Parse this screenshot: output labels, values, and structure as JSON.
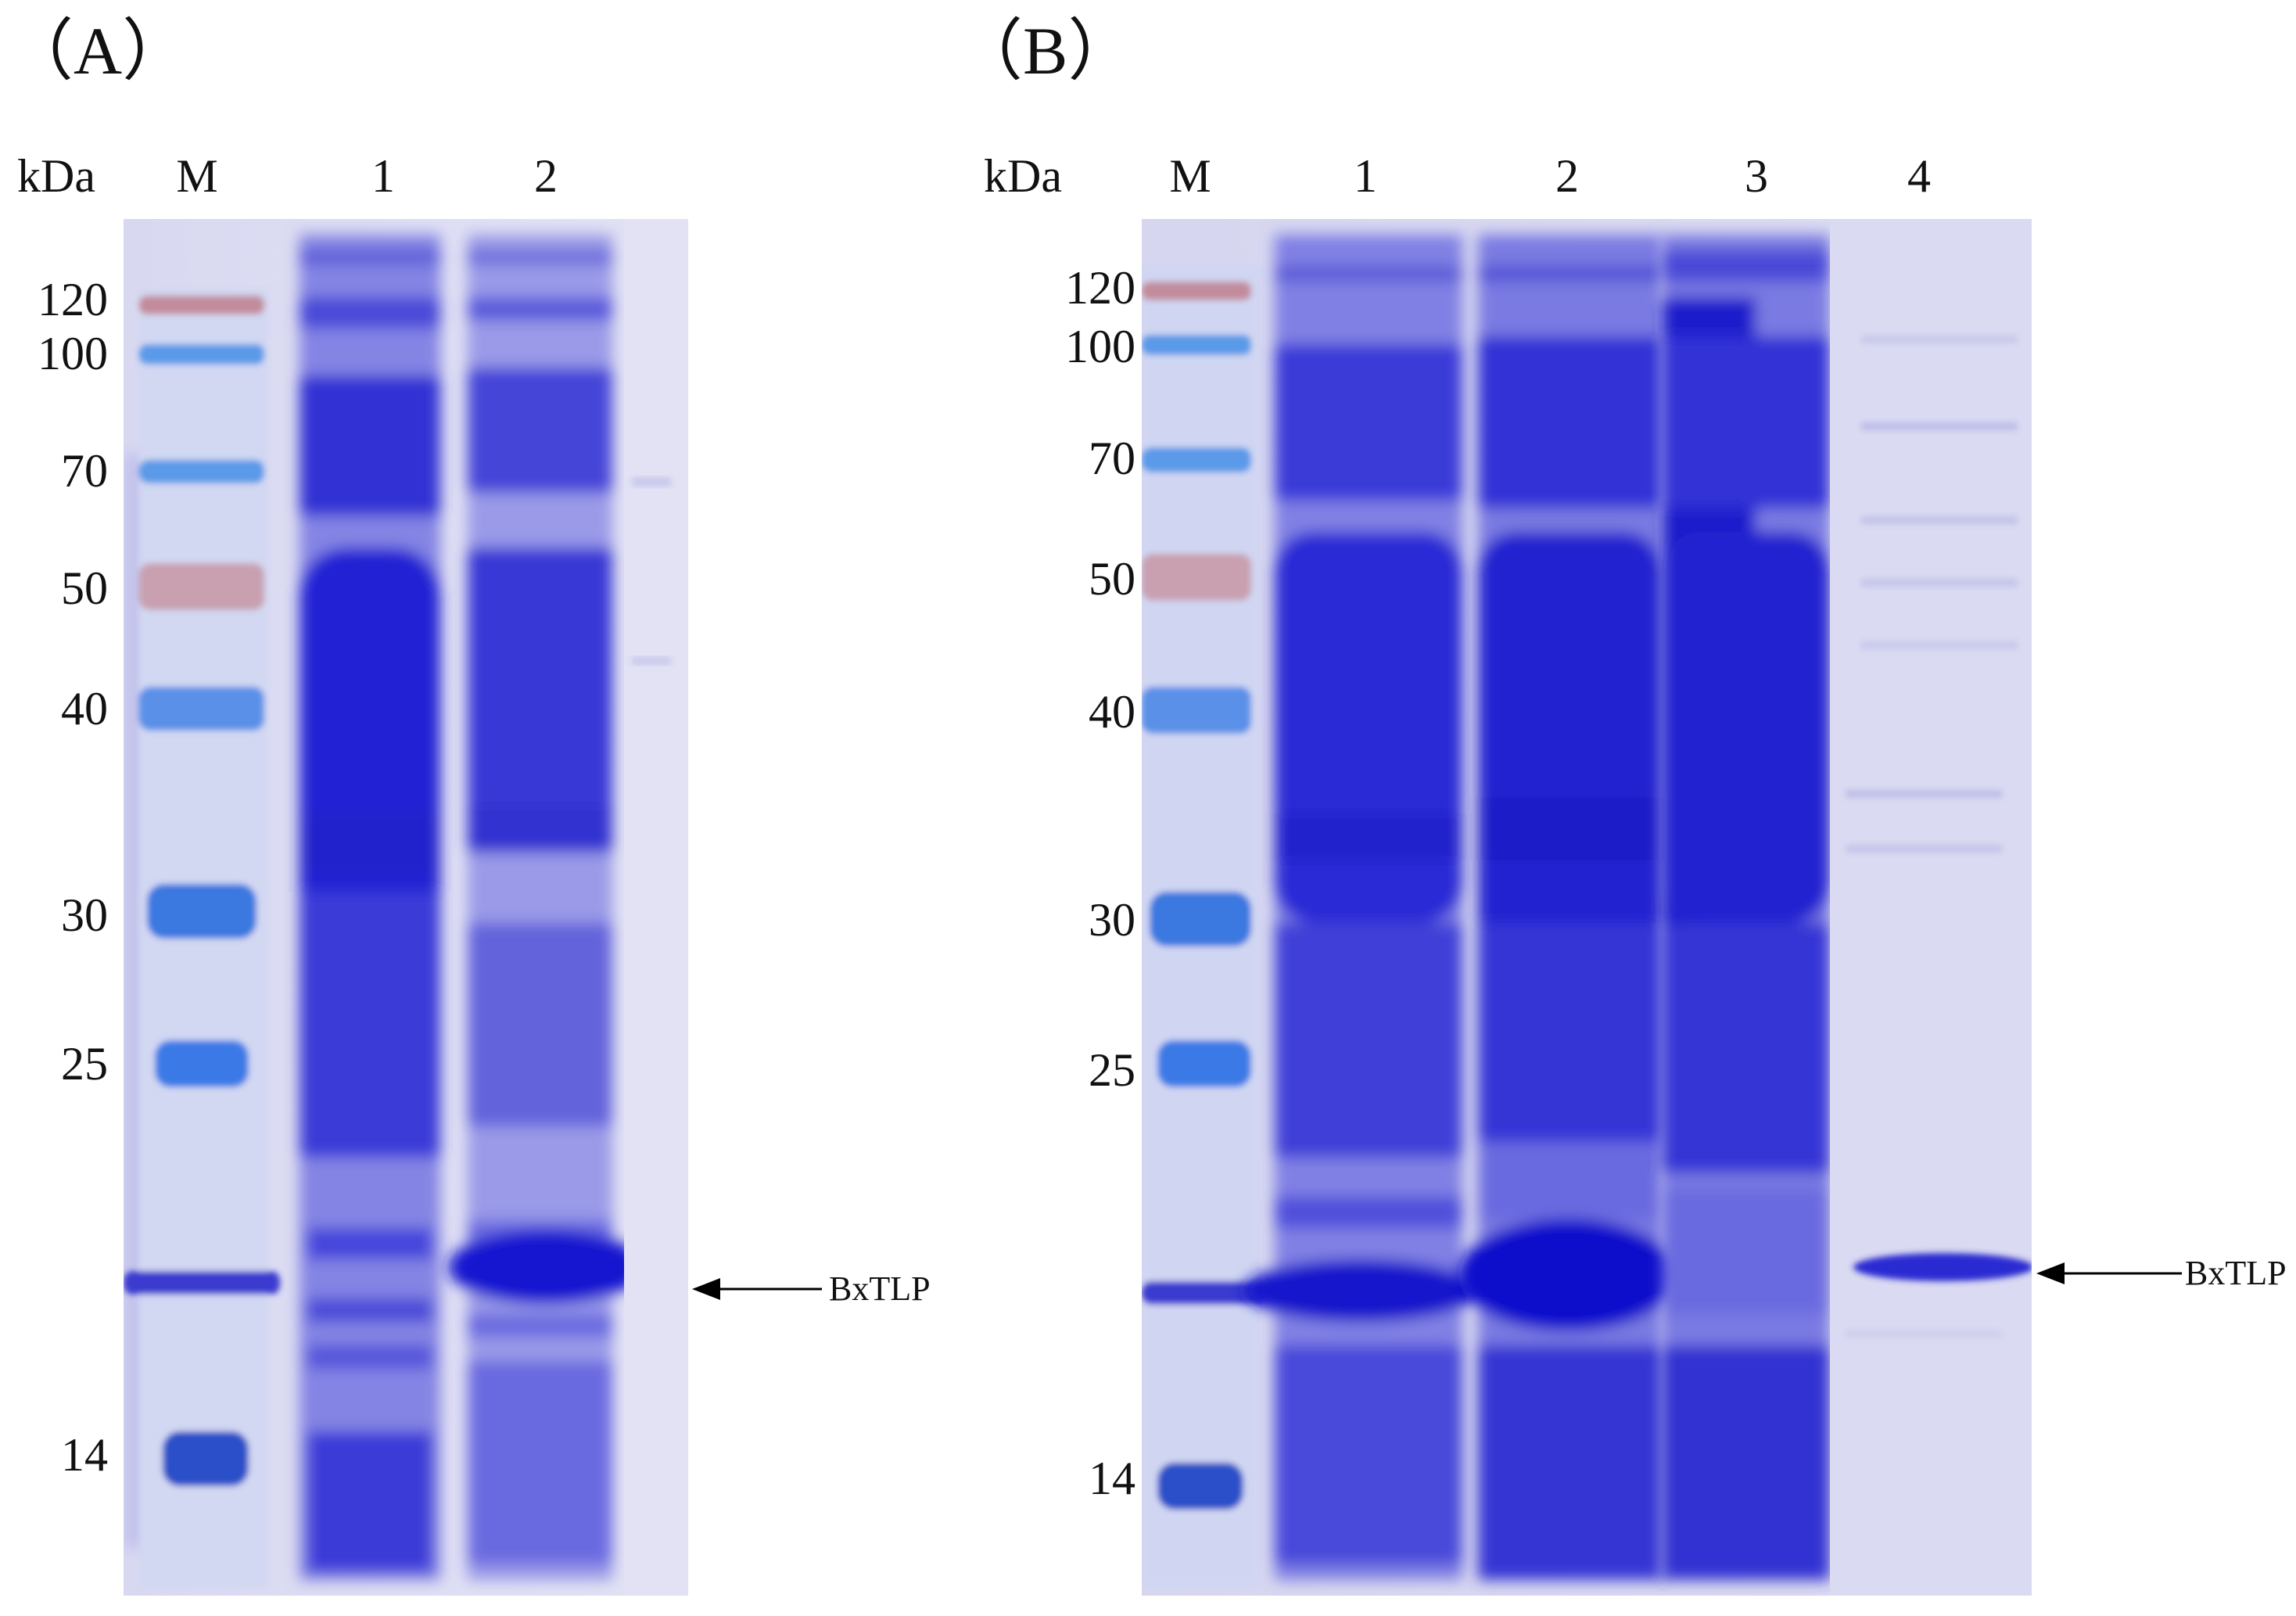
{
  "panels": [
    {
      "id": "A",
      "label": "（A）",
      "unit_label": "kDa",
      "lane_labels": [
        "M",
        "1",
        "2"
      ],
      "markers": [
        "120",
        "100",
        "70",
        "50",
        "40",
        "30",
        "25",
        "14"
      ],
      "band_label": "BxTLP"
    },
    {
      "id": "B",
      "label": "（B）",
      "unit_label": "kDa",
      "lane_labels": [
        "M",
        "1",
        "2",
        "3",
        "4"
      ],
      "markers": [
        "120",
        "100",
        "70",
        "50",
        "40",
        "30",
        "25",
        "14"
      ],
      "band_label": "BxTLP"
    }
  ],
  "colors": {
    "gel_background": "#dcdcf2",
    "stain_dark": "#2a2ad8",
    "stain_mid": "#4a4ae0",
    "marker_blue": "#3a7fe0",
    "marker_red": "#c98a9a",
    "arrow": "#000000"
  }
}
